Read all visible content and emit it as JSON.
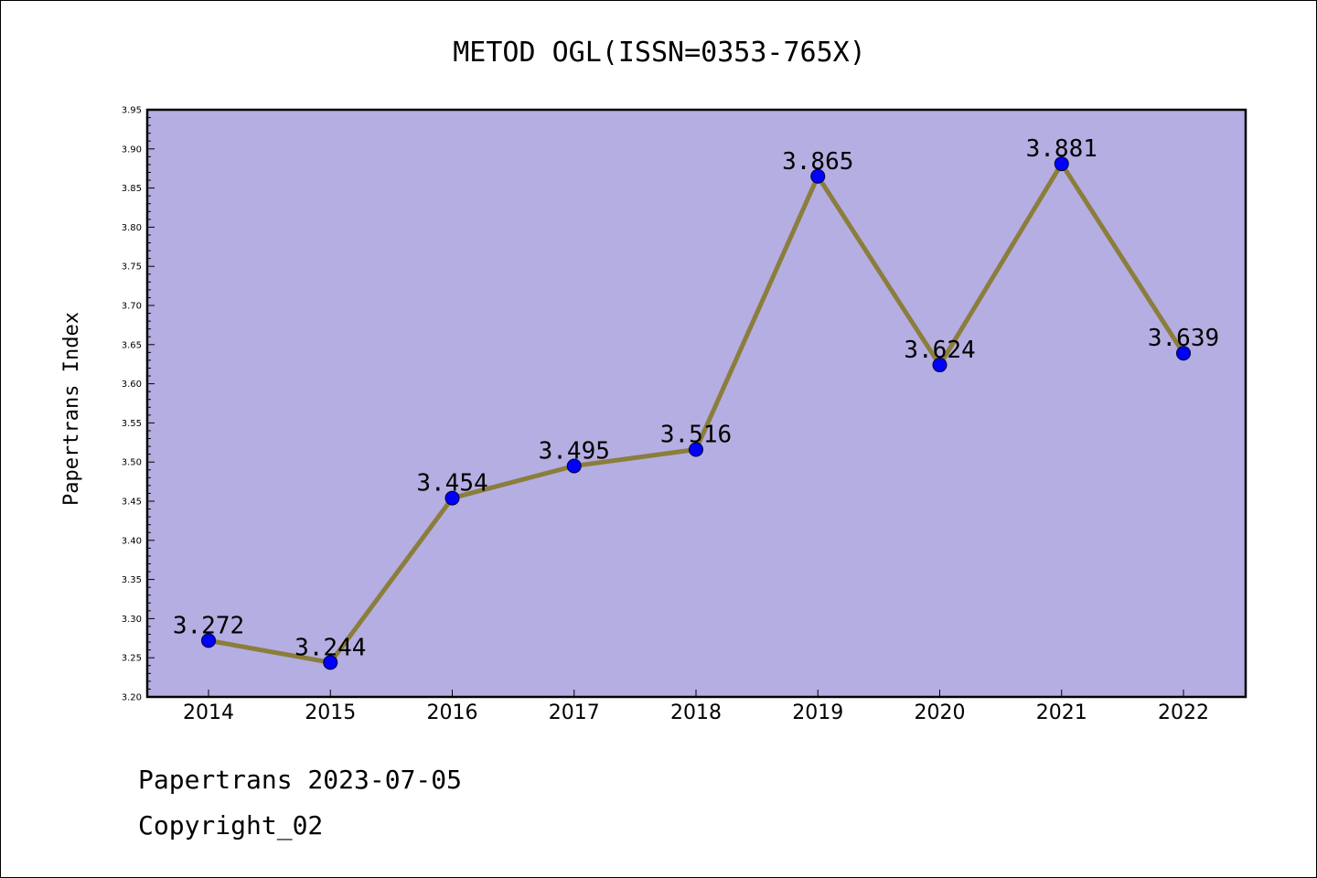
{
  "chart_data": {
    "type": "line",
    "title": "METOD OGL(ISSN=0353-765X)",
    "xlabel": "",
    "ylabel": "Papertrans Index",
    "categories": [
      "2014",
      "2015",
      "2016",
      "2017",
      "2018",
      "2019",
      "2020",
      "2021",
      "2022"
    ],
    "values": [
      3.272,
      3.244,
      3.454,
      3.495,
      3.516,
      3.865,
      3.624,
      3.881,
      3.639
    ],
    "data_labels": [
      "3.272",
      "3.244",
      "3.454",
      "3.495",
      "3.516",
      "3.865",
      "3.624",
      "3.881",
      "3.639"
    ],
    "ylim": [
      3.2,
      3.95
    ],
    "yticks": [
      "3.20",
      "3.25",
      "3.30",
      "3.35",
      "3.40",
      "3.45",
      "3.50",
      "3.55",
      "3.60",
      "3.65",
      "3.70",
      "3.75",
      "3.80",
      "3.85",
      "3.90",
      "3.95"
    ],
    "grid": false,
    "colors": {
      "plot_background": "#b5aee2",
      "line": "#8b7d3c",
      "marker": "#0000ff"
    }
  },
  "footer": {
    "line1": "Papertrans 2023-07-05",
    "line2": "Copyright_02"
  }
}
